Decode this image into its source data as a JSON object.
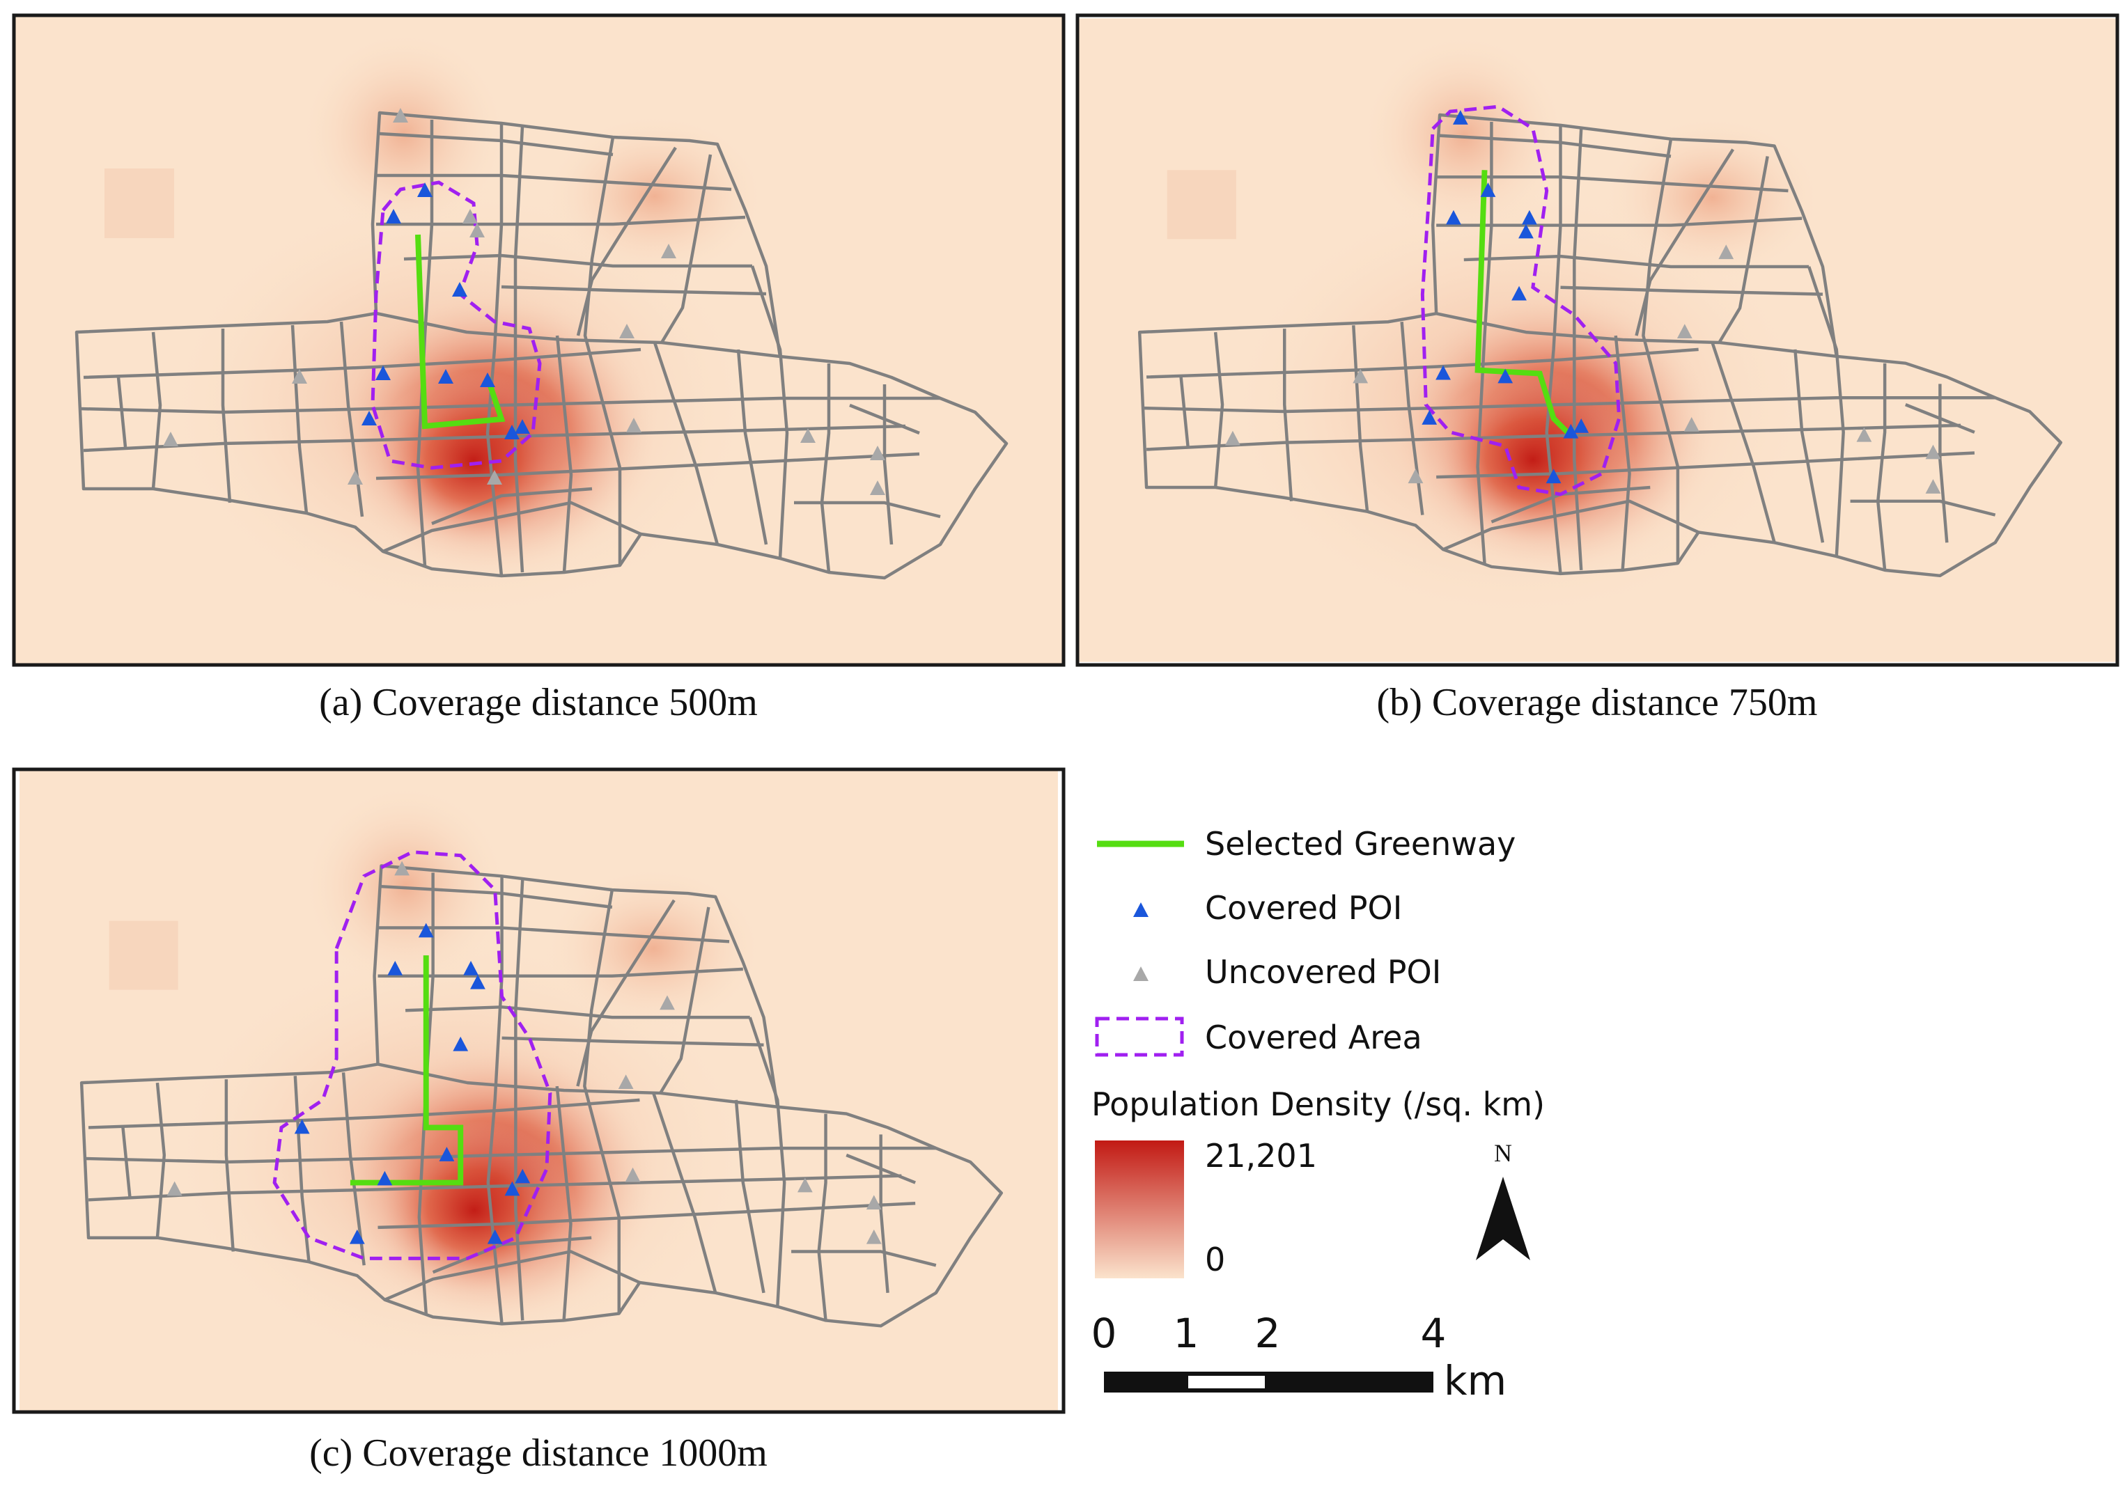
{
  "colors": {
    "background": "#fbe3cc",
    "road": "#808080",
    "greenway": "#55dd11",
    "covered_poi": "#1a56db",
    "uncovered_poi": "#a8a8a8",
    "covered_area": "#a020f0",
    "density_high": "#c21a14",
    "density_low": "#fbe3cc"
  },
  "panels": [
    {
      "id": "a",
      "caption": "(a) Coverage distance 500m",
      "coverage_m": 500
    },
    {
      "id": "b",
      "caption": "(b) Coverage distance 750m",
      "coverage_m": 750
    },
    {
      "id": "c",
      "caption": "(c) Coverage distance 1000m",
      "coverage_m": 1000
    }
  ],
  "legend": {
    "greenway": "Selected Greenway",
    "covered_poi": "Covered POI",
    "uncovered_poi": "Uncovered POI",
    "covered_area": "Covered Area",
    "density_title": "Population Density (/sq. km)",
    "density_max": "21,201",
    "density_min": "0"
  },
  "north_label": "N",
  "scale_bar": {
    "ticks": [
      "0",
      "1",
      "2",
      "4"
    ],
    "unit": "km"
  }
}
